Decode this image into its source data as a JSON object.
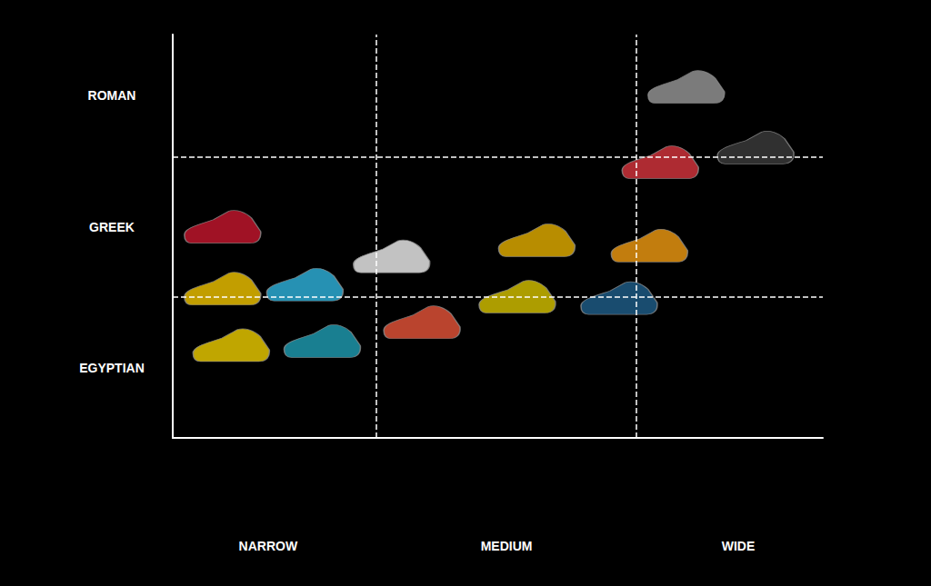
{
  "chart_data": {
    "type": "scatter",
    "marker": "shoe",
    "x": [
      0.23,
      0.23,
      0.61,
      0.27,
      0.69,
      1.01,
      1.15,
      1.68,
      1.59,
      2.06,
      2.2,
      2.25,
      2.37,
      2.69
    ],
    "y": [
      1.57,
      1.11,
      1.14,
      0.69,
      0.72,
      1.35,
      0.86,
      1.47,
      1.05,
      1.04,
      1.43,
      2.05,
      2.61,
      2.16
    ],
    "colors": [
      "#c8162e",
      "#f2c500",
      "#2fb5e0",
      "#f0d000",
      "#1f9fb5",
      "#f2f2f2",
      "#e8553a",
      "#e6b000",
      "#d8c400",
      "#1f5f8b",
      "#f39c12",
      "#d9363e",
      "#9a9a9a",
      "#3c3c3c"
    ],
    "xlim": [
      0,
      3
    ],
    "ylim": [
      0,
      3
    ],
    "xticks": [
      {
        "value": 0.44,
        "label": "NARROW"
      },
      {
        "value": 1.54,
        "label": "MEDIUM"
      },
      {
        "value": 2.61,
        "label": "WIDE"
      }
    ],
    "yticks": [
      {
        "value": 0.52,
        "label": "EGYPTIAN"
      },
      {
        "value": 1.57,
        "label": "GREEK"
      },
      {
        "value": 2.55,
        "label": "ROMAN"
      }
    ],
    "x_dividers": [
      0.94,
      2.14
    ],
    "y_dividers": [
      1.05,
      2.09
    ]
  }
}
